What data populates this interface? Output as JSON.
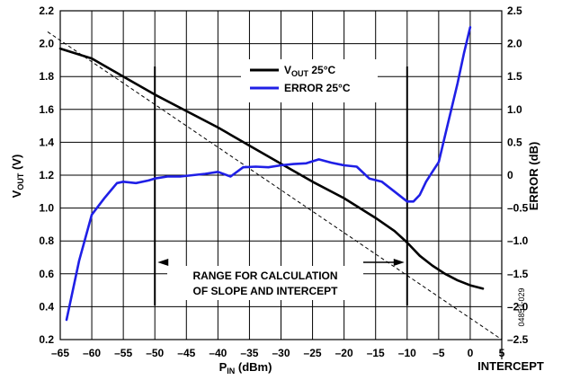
{
  "chart_data": {
    "type": "line",
    "xlabel": {
      "main": "P",
      "sub": "IN",
      "rest": " (dBm)"
    },
    "ylabel_left": {
      "main": "V",
      "sub": "OUT",
      "rest": " (V)"
    },
    "ylabel_right": "ERROR (dB)",
    "xlim": [
      -65,
      5
    ],
    "ylim_left": [
      0.2,
      2.2
    ],
    "ylim_right": [
      -2.5,
      2.5
    ],
    "x_ticks": [
      "–65",
      "–60",
      "–55",
      "–50",
      "–45",
      "–40",
      "–35",
      "–30",
      "–25",
      "–20",
      "–15",
      "–10",
      "–5",
      "0",
      "5"
    ],
    "y_ticks_left": [
      "0.2",
      "0.4",
      "0.6",
      "0.8",
      "1.0",
      "1.2",
      "1.4",
      "1.6",
      "1.8",
      "2.0",
      "2.2"
    ],
    "y_ticks_right": [
      "–2.5",
      "–2.0",
      "–1.5",
      "–1.0",
      "–0.5",
      "0",
      "0.5",
      "1.0",
      "1.5",
      "2.0",
      "2.5"
    ],
    "grid": true,
    "legend_position": "top-center",
    "series": [
      {
        "name": {
          "main": "V",
          "sub": "OUT",
          "rest": " 25°C"
        },
        "axis": "left",
        "color": "#000000",
        "x": [
          -65,
          -60,
          -55,
          -50,
          -45,
          -40,
          -35,
          -30,
          -25,
          -20,
          -15,
          -12,
          -10,
          -8,
          -6,
          -4,
          -2,
          0,
          2
        ],
        "y": [
          1.97,
          1.91,
          1.8,
          1.69,
          1.59,
          1.49,
          1.38,
          1.27,
          1.16,
          1.06,
          0.94,
          0.86,
          0.79,
          0.71,
          0.65,
          0.6,
          0.56,
          0.53,
          0.51
        ]
      },
      {
        "name": {
          "main": "ERROR 25°C",
          "sub": "",
          "rest": ""
        },
        "axis": "right",
        "color": "#1f1fe6",
        "x": [
          -64,
          -62,
          -60,
          -58,
          -56,
          -55,
          -53,
          -51,
          -50,
          -48,
          -46,
          -44,
          -42,
          -40,
          -38,
          -36,
          -34,
          -32,
          -30,
          -28,
          -26,
          -24,
          -22,
          -20,
          -18,
          -16,
          -14,
          -12,
          -10,
          -9,
          -8,
          -7,
          -6,
          -5,
          -4,
          -3,
          -2,
          -1,
          0
        ],
        "y": [
          -2.2,
          -1.3,
          -0.6,
          -0.35,
          -0.12,
          -0.1,
          -0.12,
          -0.08,
          -0.05,
          -0.02,
          -0.02,
          0.0,
          0.02,
          0.05,
          -0.02,
          0.12,
          0.13,
          0.12,
          0.15,
          0.17,
          0.18,
          0.24,
          0.19,
          0.15,
          0.13,
          -0.05,
          -0.1,
          -0.25,
          -0.4,
          -0.4,
          -0.3,
          -0.1,
          0.05,
          0.2,
          0.6,
          1.0,
          1.4,
          1.85,
          2.25
        ]
      }
    ],
    "reference_line": {
      "style": "dashed",
      "x": [
        -65,
        5
      ],
      "y": [
        2.02,
        0.2
      ]
    },
    "range_markers_x": [
      -50,
      -10
    ],
    "annotations": [
      {
        "text": "RANGE FOR CALCULATION"
      },
      {
        "text": "OF SLOPE AND INTERCEPT"
      }
    ],
    "intercept_label": "INTERCEPT",
    "figure_id": "04853-029"
  }
}
